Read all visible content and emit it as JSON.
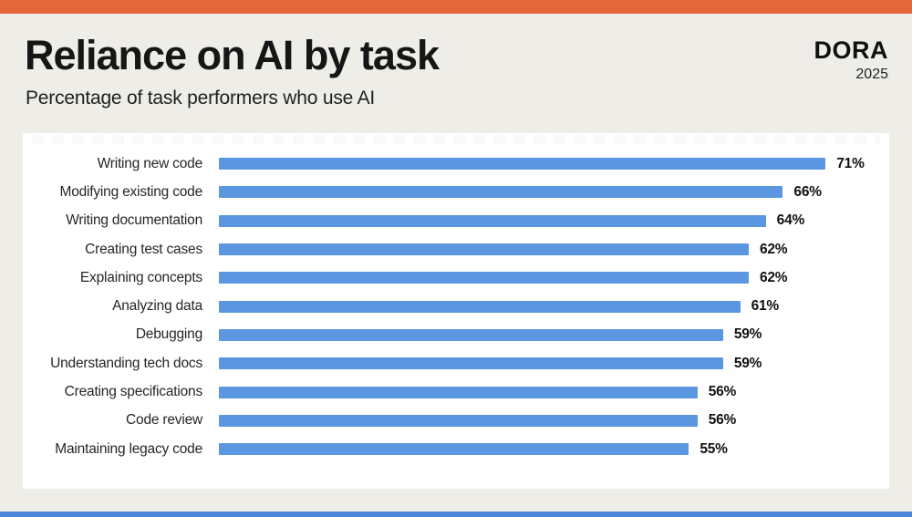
{
  "page": {
    "background_color": "#EFEDE8",
    "top_accent_color": "#E4673A",
    "bottom_accent_color": "#4C86DB",
    "card_color": "#FFFFFF"
  },
  "header": {
    "title": "Reliance on AI by task",
    "subtitle": "Percentage of task performers who use AI",
    "brand": {
      "name": "DORA",
      "year": "2025"
    }
  },
  "chart_data": {
    "type": "bar",
    "orientation": "horizontal",
    "title": "Reliance on AI by task",
    "subtitle": "Percentage of task performers who use AI",
    "unit": "%",
    "xlim": [
      0,
      78
    ],
    "grid": false,
    "legend": false,
    "bar_color": "#5B96E0",
    "categories": [
      "Writing new code",
      "Modifying existing code",
      "Writing documentation",
      "Creating test cases",
      "Explaining concepts",
      "Analyzing data",
      "Debugging",
      "Understanding tech docs",
      "Creating specifications",
      "Code review",
      "Maintaining legacy code"
    ],
    "values": [
      71,
      66,
      64,
      62,
      62,
      61,
      59,
      59,
      56,
      56,
      55
    ],
    "value_labels": [
      "71%",
      "66%",
      "64%",
      "62%",
      "62%",
      "61%",
      "59%",
      "59%",
      "56%",
      "56%",
      "55%"
    ]
  }
}
